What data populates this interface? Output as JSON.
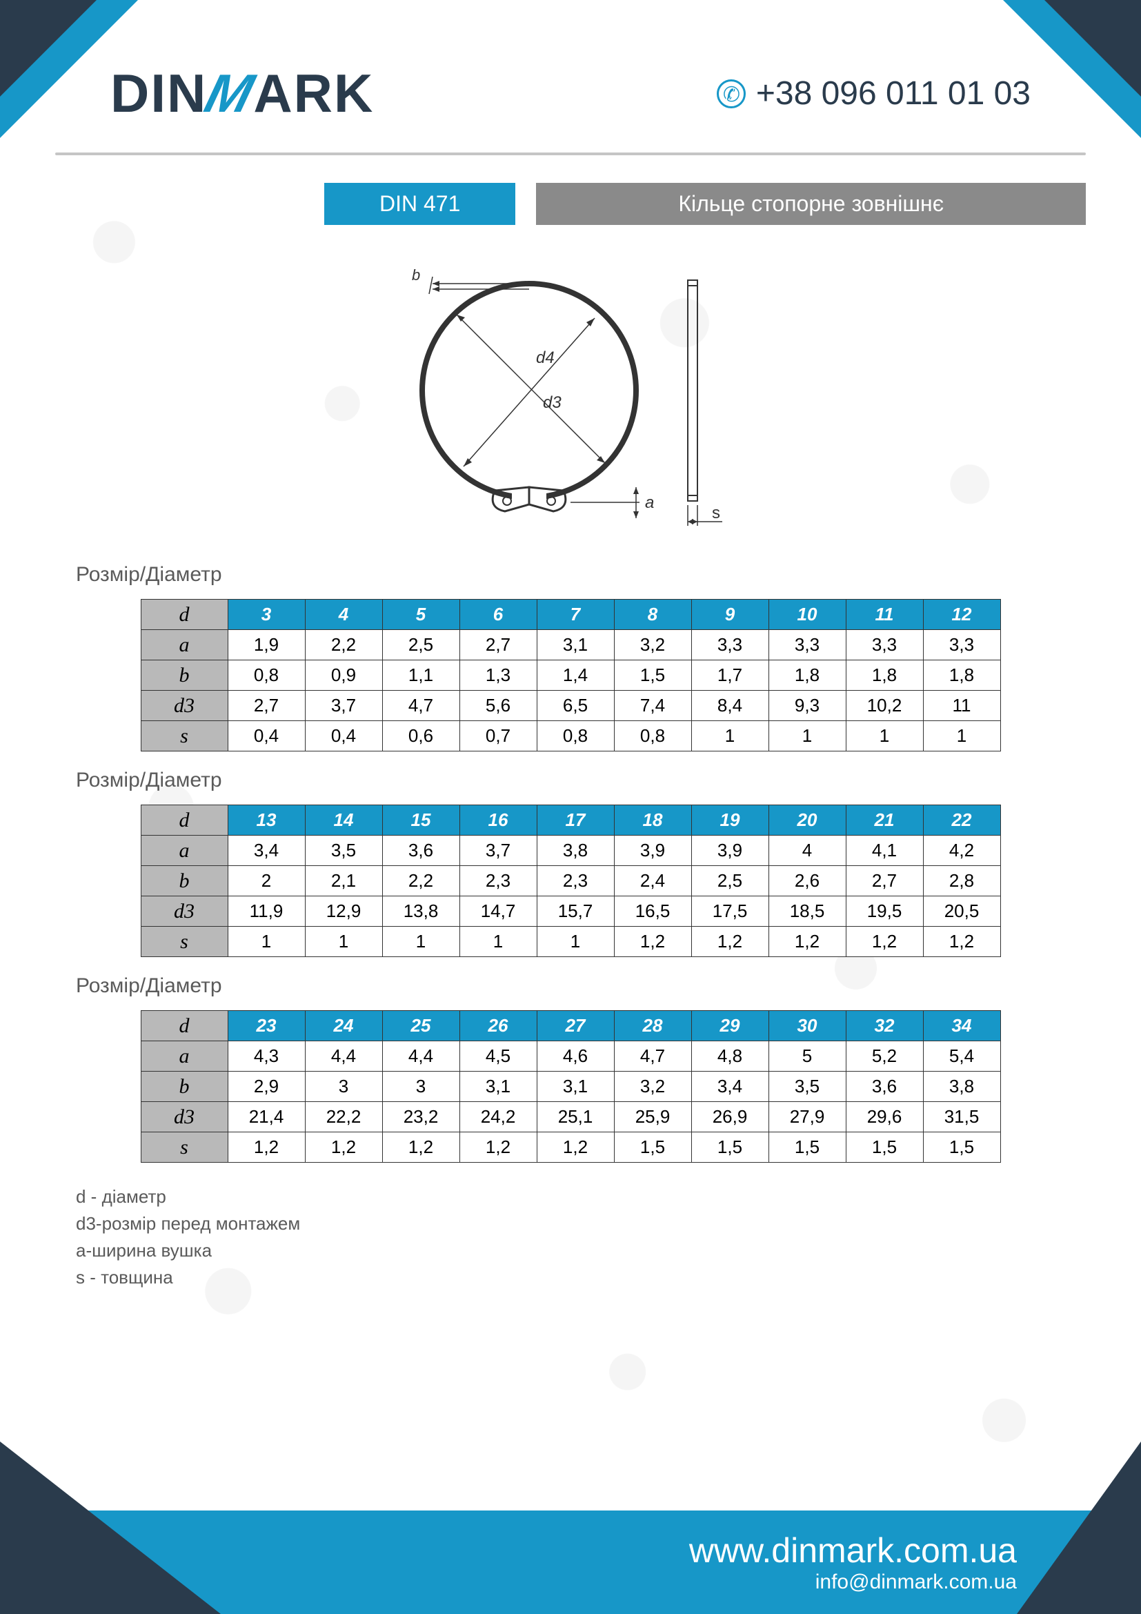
{
  "colors": {
    "accent": "#1797c8",
    "dark": "#2a3b4c",
    "grey_header": "#8a8a8a",
    "row_head_bg": "#b9b9b9",
    "divider": "#c5c5c5",
    "text_muted": "#5a5a5a",
    "border": "#333333"
  },
  "logo": {
    "text_pre": "DIN",
    "text_m": "M",
    "text_post": "ARK"
  },
  "phone": "+38 096 011 01 03",
  "title": {
    "code": "DIN 471",
    "label": "Кільце стопорне зовнішнє"
  },
  "section_label": "Розмір/Діаметр",
  "diagram_labels": {
    "d4": "d4",
    "d3": "d3",
    "a": "a",
    "b": "b",
    "s": "s"
  },
  "row_labels": [
    "d",
    "a",
    "b",
    "d3",
    "s"
  ],
  "tables": [
    {
      "columns": [
        "3",
        "4",
        "5",
        "6",
        "7",
        "8",
        "9",
        "10",
        "11",
        "12"
      ],
      "rows": {
        "a": [
          "1,9",
          "2,2",
          "2,5",
          "2,7",
          "3,1",
          "3,2",
          "3,3",
          "3,3",
          "3,3",
          "3,3"
        ],
        "b": [
          "0,8",
          "0,9",
          "1,1",
          "1,3",
          "1,4",
          "1,5",
          "1,7",
          "1,8",
          "1,8",
          "1,8"
        ],
        "d3": [
          "2,7",
          "3,7",
          "4,7",
          "5,6",
          "6,5",
          "7,4",
          "8,4",
          "9,3",
          "10,2",
          "11"
        ],
        "s": [
          "0,4",
          "0,4",
          "0,6",
          "0,7",
          "0,8",
          "0,8",
          "1",
          "1",
          "1",
          "1"
        ]
      }
    },
    {
      "columns": [
        "13",
        "14",
        "15",
        "16",
        "17",
        "18",
        "19",
        "20",
        "21",
        "22"
      ],
      "rows": {
        "a": [
          "3,4",
          "3,5",
          "3,6",
          "3,7",
          "3,8",
          "3,9",
          "3,9",
          "4",
          "4,1",
          "4,2"
        ],
        "b": [
          "2",
          "2,1",
          "2,2",
          "2,3",
          "2,3",
          "2,4",
          "2,5",
          "2,6",
          "2,7",
          "2,8"
        ],
        "d3": [
          "11,9",
          "12,9",
          "13,8",
          "14,7",
          "15,7",
          "16,5",
          "17,5",
          "18,5",
          "19,5",
          "20,5"
        ],
        "s": [
          "1",
          "1",
          "1",
          "1",
          "1",
          "1,2",
          "1,2",
          "1,2",
          "1,2",
          "1,2"
        ]
      }
    },
    {
      "columns": [
        "23",
        "24",
        "25",
        "26",
        "27",
        "28",
        "29",
        "30",
        "32",
        "34"
      ],
      "rows": {
        "a": [
          "4,3",
          "4,4",
          "4,4",
          "4,5",
          "4,6",
          "4,7",
          "4,8",
          "5",
          "5,2",
          "5,4"
        ],
        "b": [
          "2,9",
          "3",
          "3",
          "3,1",
          "3,1",
          "3,2",
          "3,4",
          "3,5",
          "3,6",
          "3,8"
        ],
        "d3": [
          "21,4",
          "22,2",
          "23,2",
          "24,2",
          "25,1",
          "25,9",
          "26,9",
          "27,9",
          "29,6",
          "31,5"
        ],
        "s": [
          "1,2",
          "1,2",
          "1,2",
          "1,2",
          "1,2",
          "1,5",
          "1,5",
          "1,5",
          "1,5",
          "1,5"
        ]
      }
    }
  ],
  "legend": [
    "d - діаметр",
    "d3-розмір перед монтажем",
    "a-ширина вушка",
    "s - товщина"
  ],
  "footer": {
    "url": "www.dinmark.com.ua",
    "email": "info@dinmark.com.ua"
  }
}
